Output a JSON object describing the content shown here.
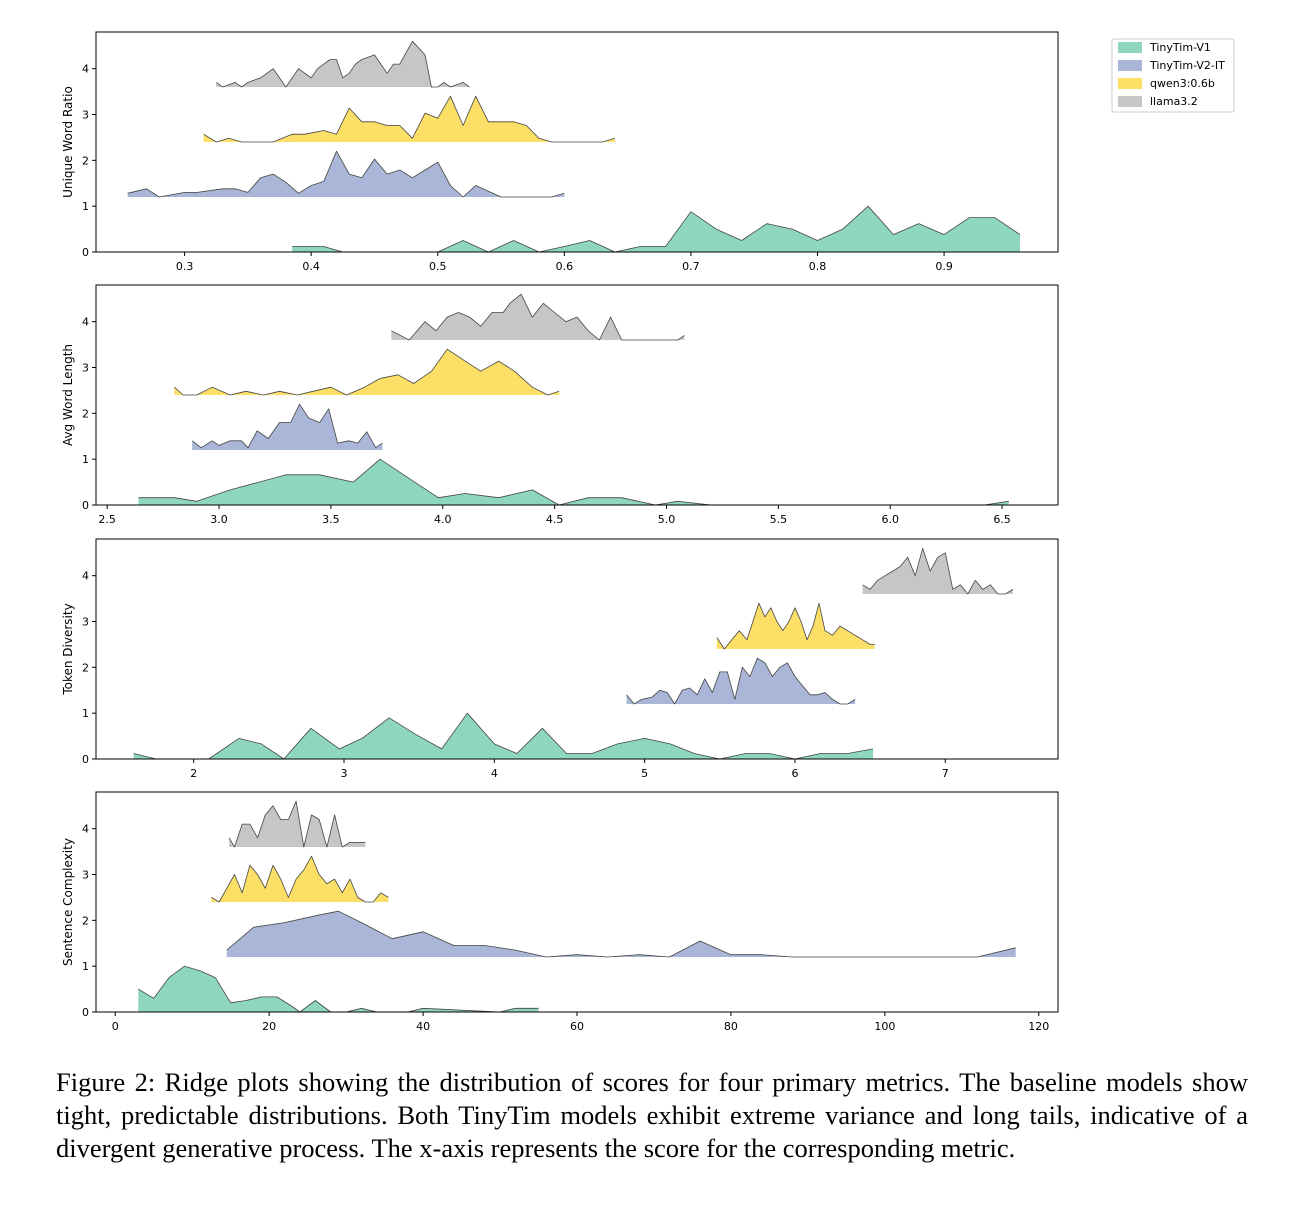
{
  "colors": {
    "TinyTim-V1": "#8fd7bc",
    "TinyTim-V2-IT": "#aab6d7",
    "qwen3:0.6b": "#fbdf67",
    "llama3.2": "#c6c6c6"
  },
  "legend": [
    "TinyTim-V1",
    "TinyTim-V2-IT",
    "qwen3:0.6b",
    "llama3.2"
  ],
  "caption": "Figure 2: Ridge plots showing the distribution of scores for four primary metrics. The baseline models show tight, predictable distributions. Both TinyTim models exhibit extreme variance and long tails, indicative of a divergent generative process. The x-axis represents the score for the corresponding metric.",
  "chart_data": [
    {
      "type": "area",
      "title": "",
      "ylabel": "Unique Word Ratio",
      "xlabel": "",
      "xlim": [
        0.23,
        0.99
      ],
      "ylim": [
        0,
        4.8
      ],
      "xticks": [
        0.3,
        0.4,
        0.5,
        0.6,
        0.7,
        0.8,
        0.9
      ],
      "xtick_labels": [
        "0.3",
        "0.4",
        "0.5",
        "0.6",
        "0.7",
        "0.8",
        "0.9"
      ],
      "yticks": [
        0,
        1,
        2,
        3,
        4
      ],
      "series": [
        {
          "name": "TinyTim-V1",
          "baseline": 0,
          "x": [
            0.385,
            0.39,
            0.41,
            0.425,
            0.5,
            0.52,
            0.54,
            0.56,
            0.58,
            0.6,
            0.62,
            0.64,
            0.66,
            0.68,
            0.7,
            0.72,
            0.74,
            0.76,
            0.78,
            0.8,
            0.82,
            0.84,
            0.86,
            0.88,
            0.9,
            0.92,
            0.94,
            0.96
          ],
          "y": [
            0.12,
            0.12,
            0.12,
            0.0,
            0.0,
            0.25,
            0.0,
            0.25,
            0.0,
            0.12,
            0.25,
            0.0,
            0.12,
            0.12,
            0.88,
            0.5,
            0.25,
            0.62,
            0.5,
            0.25,
            0.5,
            1.0,
            0.38,
            0.62,
            0.38,
            0.75,
            0.75,
            0.38
          ]
        },
        {
          "name": "TinyTim-V2-IT",
          "baseline": 1.2,
          "x": [
            0.255,
            0.27,
            0.28,
            0.3,
            0.31,
            0.33,
            0.34,
            0.35,
            0.36,
            0.37,
            0.38,
            0.39,
            0.4,
            0.41,
            0.42,
            0.43,
            0.44,
            0.45,
            0.46,
            0.47,
            0.48,
            0.49,
            0.5,
            0.51,
            0.52,
            0.53,
            0.55,
            0.57,
            0.59,
            0.6
          ],
          "y": [
            1.28,
            1.38,
            1.2,
            1.3,
            1.3,
            1.38,
            1.38,
            1.3,
            1.62,
            1.7,
            1.52,
            1.28,
            1.45,
            1.54,
            2.2,
            1.7,
            1.62,
            2.03,
            1.7,
            1.79,
            1.62,
            1.79,
            1.96,
            1.45,
            1.2,
            1.45,
            1.2,
            1.2,
            1.2,
            1.28
          ]
        },
        {
          "name": "qwen3:0.6b",
          "baseline": 2.4,
          "x": [
            0.315,
            0.325,
            0.335,
            0.345,
            0.36,
            0.37,
            0.385,
            0.395,
            0.41,
            0.42,
            0.43,
            0.44,
            0.45,
            0.46,
            0.47,
            0.48,
            0.49,
            0.5,
            0.51,
            0.52,
            0.53,
            0.54,
            0.55,
            0.56,
            0.57,
            0.58,
            0.59,
            0.6,
            0.61,
            0.62,
            0.63,
            0.64
          ],
          "y": [
            2.57,
            2.4,
            2.48,
            2.4,
            2.4,
            2.4,
            2.57,
            2.57,
            2.65,
            2.57,
            3.14,
            2.84,
            2.84,
            2.76,
            2.76,
            2.48,
            3.03,
            2.92,
            3.4,
            2.76,
            3.4,
            2.84,
            2.84,
            2.84,
            2.76,
            2.48,
            2.4,
            2.4,
            2.4,
            2.4,
            2.4,
            2.48
          ]
        },
        {
          "name": "llama3.2",
          "baseline": 3.6,
          "x": [
            0.325,
            0.33,
            0.34,
            0.345,
            0.35,
            0.36,
            0.37,
            0.38,
            0.39,
            0.4,
            0.405,
            0.41,
            0.415,
            0.42,
            0.425,
            0.43,
            0.435,
            0.44,
            0.45,
            0.46,
            0.465,
            0.47,
            0.48,
            0.49,
            0.495,
            0.5,
            0.505,
            0.51,
            0.52,
            0.525
          ],
          "y": [
            3.7,
            3.6,
            3.7,
            3.6,
            3.7,
            3.8,
            4.0,
            3.6,
            4.0,
            3.8,
            4.0,
            4.1,
            4.2,
            4.2,
            3.8,
            3.9,
            4.1,
            4.2,
            4.3,
            3.9,
            4.1,
            4.1,
            4.6,
            4.3,
            3.6,
            3.6,
            3.7,
            3.6,
            3.7,
            3.6
          ]
        }
      ]
    },
    {
      "type": "area",
      "title": "",
      "ylabel": "Avg Word Length",
      "xlabel": "",
      "xlim": [
        2.45,
        6.75
      ],
      "ylim": [
        0,
        4.8
      ],
      "xticks": [
        2.5,
        3.0,
        3.5,
        4.0,
        4.5,
        5.0,
        5.5,
        6.0,
        6.5
      ],
      "xtick_labels": [
        "2.5",
        "3.0",
        "3.5",
        "4.0",
        "4.5",
        "5.0",
        "5.5",
        "6.0",
        "6.5"
      ],
      "yticks": [
        0,
        1,
        2,
        3,
        4
      ],
      "series": [
        {
          "name": "TinyTim-V1",
          "baseline": 0,
          "x": [
            2.64,
            2.8,
            2.9,
            3.05,
            3.3,
            3.45,
            3.6,
            3.72,
            3.98,
            4.1,
            4.25,
            4.4,
            4.52,
            4.65,
            4.8,
            4.95,
            5.05,
            5.2,
            6.0,
            6.42,
            6.53
          ],
          "y": [
            0.16,
            0.16,
            0.08,
            0.33,
            0.66,
            0.66,
            0.5,
            1.0,
            0.16,
            0.25,
            0.16,
            0.33,
            0.0,
            0.16,
            0.16,
            0.0,
            0.08,
            0.0,
            0.0,
            0.0,
            0.08
          ]
        },
        {
          "name": "TinyTim-V2-IT",
          "baseline": 1.2,
          "x": [
            2.88,
            2.92,
            2.97,
            3.0,
            3.05,
            3.1,
            3.13,
            3.17,
            3.22,
            3.27,
            3.32,
            3.36,
            3.4,
            3.45,
            3.49,
            3.53,
            3.58,
            3.62,
            3.66,
            3.7,
            3.73
          ],
          "y": [
            1.4,
            1.25,
            1.4,
            1.3,
            1.4,
            1.4,
            1.25,
            1.62,
            1.45,
            1.8,
            1.8,
            2.2,
            1.9,
            1.8,
            2.1,
            1.35,
            1.4,
            1.35,
            1.6,
            1.25,
            1.35
          ]
        },
        {
          "name": "qwen3:0.6b",
          "baseline": 2.4,
          "x": [
            2.8,
            2.84,
            2.9,
            2.97,
            3.05,
            3.12,
            3.2,
            3.27,
            3.35,
            3.42,
            3.5,
            3.57,
            3.65,
            3.72,
            3.8,
            3.87,
            3.95,
            4.02,
            4.1,
            4.17,
            4.25,
            4.32,
            4.4,
            4.47,
            4.52
          ],
          "y": [
            2.57,
            2.4,
            2.4,
            2.57,
            2.4,
            2.48,
            2.4,
            2.48,
            2.4,
            2.48,
            2.57,
            2.4,
            2.57,
            2.76,
            2.84,
            2.65,
            2.92,
            3.4,
            3.14,
            2.92,
            3.14,
            2.92,
            2.57,
            2.4,
            2.48
          ]
        },
        {
          "name": "llama3.2",
          "baseline": 3.6,
          "x": [
            3.77,
            3.85,
            3.92,
            3.97,
            4.02,
            4.07,
            4.12,
            4.17,
            4.22,
            4.27,
            4.3,
            4.35,
            4.4,
            4.45,
            4.5,
            4.55,
            4.6,
            4.65,
            4.7,
            4.75,
            4.8,
            4.85,
            4.9,
            5.0,
            5.05,
            5.08
          ],
          "y": [
            3.8,
            3.6,
            4.0,
            3.8,
            4.1,
            4.2,
            4.1,
            3.9,
            4.2,
            4.2,
            4.4,
            4.6,
            4.1,
            4.4,
            4.2,
            4.0,
            4.1,
            3.8,
            3.6,
            4.1,
            3.6,
            3.6,
            3.6,
            3.6,
            3.6,
            3.7
          ]
        }
      ]
    },
    {
      "type": "area",
      "title": "",
      "ylabel": "Token Diversity",
      "xlabel": "",
      "xlim": [
        1.35,
        7.75
      ],
      "ylim": [
        0,
        4.8
      ],
      "xticks": [
        2,
        3,
        4,
        5,
        6,
        7
      ],
      "xtick_labels": [
        "2",
        "3",
        "4",
        "5",
        "6",
        "7"
      ],
      "yticks": [
        0,
        1,
        2,
        3,
        4
      ],
      "series": [
        {
          "name": "TinyTim-V1",
          "baseline": 0,
          "x": [
            1.6,
            1.75,
            2.1,
            2.3,
            2.45,
            2.6,
            2.78,
            2.97,
            3.12,
            3.3,
            3.47,
            3.65,
            3.82,
            4.0,
            4.15,
            4.32,
            4.48,
            4.65,
            4.82,
            5.0,
            5.17,
            5.33,
            5.5,
            5.67,
            5.83,
            6.0,
            6.17,
            6.35,
            6.52
          ],
          "y": [
            0.12,
            0.0,
            0.0,
            0.45,
            0.33,
            0.0,
            0.67,
            0.22,
            0.45,
            0.9,
            0.55,
            0.22,
            1.0,
            0.33,
            0.12,
            0.67,
            0.12,
            0.12,
            0.33,
            0.45,
            0.33,
            0.12,
            0.0,
            0.12,
            0.12,
            0.0,
            0.12,
            0.12,
            0.22
          ]
        },
        {
          "name": "TinyTim-V2-IT",
          "baseline": 1.2,
          "x": [
            4.88,
            4.93,
            4.98,
            5.05,
            5.1,
            5.15,
            5.2,
            5.25,
            5.3,
            5.35,
            5.4,
            5.45,
            5.5,
            5.55,
            5.6,
            5.65,
            5.7,
            5.75,
            5.8,
            5.85,
            5.9,
            5.95,
            6.0,
            6.05,
            6.1,
            6.15,
            6.2,
            6.25,
            6.3,
            6.35,
            6.4
          ],
          "y": [
            1.4,
            1.2,
            1.3,
            1.35,
            1.5,
            1.45,
            1.2,
            1.5,
            1.55,
            1.4,
            1.75,
            1.45,
            1.9,
            1.9,
            1.3,
            2.0,
            1.8,
            2.2,
            2.1,
            1.8,
            2.0,
            2.1,
            1.8,
            1.6,
            1.4,
            1.4,
            1.45,
            1.3,
            1.2,
            1.2,
            1.3
          ]
        },
        {
          "name": "qwen3:0.6b",
          "baseline": 2.4,
          "x": [
            5.48,
            5.53,
            5.58,
            5.63,
            5.68,
            5.72,
            5.76,
            5.8,
            5.84,
            5.88,
            5.92,
            5.96,
            6.0,
            6.04,
            6.08,
            6.12,
            6.16,
            6.2,
            6.25,
            6.3,
            6.35,
            6.4,
            6.45,
            6.5,
            6.53
          ],
          "y": [
            2.65,
            2.4,
            2.6,
            2.8,
            2.6,
            3.0,
            3.4,
            3.1,
            3.3,
            3.0,
            2.8,
            3.0,
            3.3,
            3.0,
            2.6,
            2.9,
            3.4,
            2.8,
            2.7,
            2.9,
            2.8,
            2.7,
            2.6,
            2.5,
            2.5
          ]
        },
        {
          "name": "llama3.2",
          "baseline": 3.6,
          "x": [
            6.45,
            6.5,
            6.55,
            6.6,
            6.65,
            6.7,
            6.75,
            6.8,
            6.85,
            6.9,
            6.95,
            7.0,
            7.05,
            7.1,
            7.15,
            7.2,
            7.25,
            7.3,
            7.35,
            7.4,
            7.45
          ],
          "y": [
            3.8,
            3.7,
            3.9,
            4.0,
            4.1,
            4.2,
            4.4,
            4.0,
            4.6,
            4.1,
            4.4,
            4.5,
            3.7,
            3.8,
            3.6,
            3.9,
            3.7,
            3.8,
            3.6,
            3.6,
            3.7
          ]
        }
      ]
    },
    {
      "type": "area",
      "title": "",
      "ylabel": "Sentence Complexity",
      "xlabel": "",
      "xlim": [
        -2.5,
        122.5
      ],
      "ylim": [
        0,
        4.8
      ],
      "xticks": [
        0,
        20,
        40,
        60,
        80,
        100,
        120
      ],
      "xtick_labels": [
        "0",
        "20",
        "40",
        "60",
        "80",
        "100",
        "120"
      ],
      "yticks": [
        0,
        1,
        2,
        3,
        4
      ],
      "series": [
        {
          "name": "TinyTim-V1",
          "baseline": 0,
          "x": [
            3,
            5,
            7,
            9,
            11,
            13,
            15,
            17,
            19,
            21,
            23,
            24,
            26,
            28,
            30,
            32,
            34,
            36,
            38,
            40,
            50,
            52,
            55
          ],
          "y": [
            0.5,
            0.3,
            0.75,
            1.0,
            0.9,
            0.75,
            0.2,
            0.25,
            0.33,
            0.33,
            0.12,
            0.0,
            0.25,
            0.0,
            0.0,
            0.08,
            0.0,
            0.0,
            0.0,
            0.08,
            0.0,
            0.08,
            0.08
          ]
        },
        {
          "name": "TinyTim-V2-IT",
          "baseline": 1.2,
          "x": [
            14.5,
            18,
            22,
            26,
            29,
            32,
            36,
            40,
            44,
            48,
            52,
            56,
            60,
            64,
            68,
            72,
            76,
            80,
            84,
            88,
            100,
            112,
            117
          ],
          "y": [
            1.35,
            1.85,
            1.95,
            2.1,
            2.2,
            1.95,
            1.6,
            1.75,
            1.45,
            1.45,
            1.35,
            1.2,
            1.25,
            1.2,
            1.25,
            1.2,
            1.55,
            1.25,
            1.25,
            1.2,
            1.2,
            1.2,
            1.4
          ]
        },
        {
          "name": "qwen3:0.6b",
          "baseline": 2.4,
          "x": [
            12.5,
            13.5,
            14.5,
            15.5,
            16.5,
            17.5,
            18.5,
            19.5,
            20.5,
            21.5,
            22.5,
            23.5,
            24.5,
            25.5,
            26.5,
            27.5,
            28.5,
            29.5,
            30.5,
            31.5,
            32.5,
            33.5,
            34.5,
            35.5
          ],
          "y": [
            2.5,
            2.4,
            2.7,
            3.0,
            2.6,
            3.2,
            3.0,
            2.7,
            3.2,
            2.9,
            2.5,
            2.9,
            3.1,
            3.4,
            3.0,
            2.8,
            2.9,
            2.6,
            2.9,
            2.5,
            2.4,
            2.4,
            2.6,
            2.5
          ]
        },
        {
          "name": "llama3.2",
          "baseline": 3.6,
          "x": [
            14.8,
            15.5,
            16.5,
            17.5,
            18.5,
            19.5,
            20.5,
            21.5,
            22.5,
            23.5,
            24.5,
            25.5,
            26.5,
            27.5,
            28.5,
            29.5,
            30.5,
            31.5,
            32.5
          ],
          "y": [
            3.8,
            3.6,
            4.1,
            4.1,
            3.8,
            4.3,
            4.5,
            4.2,
            4.2,
            4.6,
            3.6,
            4.3,
            4.2,
            3.6,
            4.3,
            3.6,
            3.7,
            3.7,
            3.7
          ]
        }
      ]
    }
  ]
}
